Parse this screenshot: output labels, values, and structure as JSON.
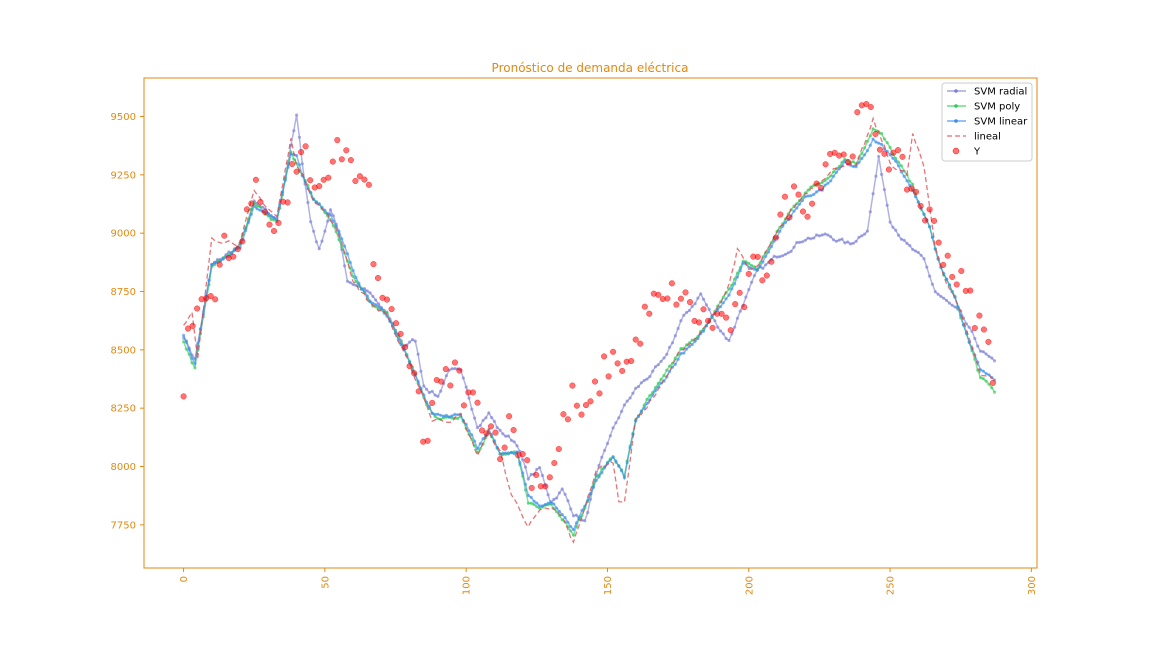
{
  "chart_data": {
    "type": "line",
    "title": "Pronóstico de demanda eléctrica",
    "xlabel": "",
    "ylabel": "",
    "xlim": [
      -14,
      302
    ],
    "ylim": [
      7565,
      9665
    ],
    "x_ticks": [
      0,
      50,
      100,
      150,
      200,
      250,
      300
    ],
    "y_ticks": [
      7750,
      8000,
      8250,
      8500,
      8750,
      9000,
      9250,
      9500
    ],
    "x_tick_labels": [
      "0",
      "50",
      "100",
      "150",
      "200",
      "250",
      "300"
    ],
    "y_tick_labels": [
      "7750",
      "8000",
      "8250",
      "8500",
      "8750",
      "9000",
      "9250",
      "9500"
    ],
    "grid": false,
    "legend_position": "top-right",
    "colors": {
      "svm_radial": "#7b7fd6",
      "svm_poly": "#2ecc57",
      "svm_linear": "#3a8ef0",
      "lineal": "#e0464a",
      "y": "#ff0000",
      "axis": "#e08a12"
    },
    "series": [
      {
        "name": "SVM radial",
        "style": "line-dots",
        "anchors": [
          [
            0,
            8560
          ],
          [
            4,
            8460
          ],
          [
            10,
            8860
          ],
          [
            20,
            8950
          ],
          [
            25,
            9130
          ],
          [
            33,
            9050
          ],
          [
            40,
            9500
          ],
          [
            42,
            9300
          ],
          [
            45,
            9050
          ],
          [
            48,
            8930
          ],
          [
            52,
            9100
          ],
          [
            55,
            9000
          ],
          [
            58,
            8800
          ],
          [
            65,
            8750
          ],
          [
            72,
            8650
          ],
          [
            78,
            8520
          ],
          [
            82,
            8540
          ],
          [
            85,
            8350
          ],
          [
            90,
            8300
          ],
          [
            94,
            8420
          ],
          [
            98,
            8400
          ],
          [
            104,
            8180
          ],
          [
            108,
            8230
          ],
          [
            112,
            8150
          ],
          [
            118,
            8100
          ],
          [
            122,
            7950
          ],
          [
            126,
            7990
          ],
          [
            130,
            7850
          ],
          [
            134,
            7900
          ],
          [
            138,
            7800
          ],
          [
            142,
            7760
          ],
          [
            146,
            7950
          ],
          [
            150,
            8100
          ],
          [
            155,
            8240
          ],
          [
            160,
            8330
          ],
          [
            164,
            8380
          ],
          [
            170,
            8450
          ],
          [
            176,
            8620
          ],
          [
            183,
            8740
          ],
          [
            188,
            8620
          ],
          [
            193,
            8540
          ],
          [
            198,
            8700
          ],
          [
            203,
            8830
          ],
          [
            210,
            8900
          ],
          [
            220,
            8980
          ],
          [
            228,
            8990
          ],
          [
            236,
            8950
          ],
          [
            242,
            9020
          ],
          [
            246,
            9320
          ],
          [
            250,
            9060
          ],
          [
            256,
            8950
          ],
          [
            262,
            8880
          ],
          [
            266,
            8750
          ],
          [
            275,
            8650
          ],
          [
            282,
            8500
          ],
          [
            287,
            8440
          ]
        ],
        "noise": 12
      },
      {
        "name": "SVM poly",
        "style": "line-dots",
        "anchors": [
          [
            0,
            8540
          ],
          [
            4,
            8420
          ],
          [
            10,
            8850
          ],
          [
            20,
            8950
          ],
          [
            25,
            9130
          ],
          [
            33,
            9050
          ],
          [
            38,
            9350
          ],
          [
            40,
            9300
          ],
          [
            42,
            9250
          ],
          [
            46,
            9150
          ],
          [
            52,
            9050
          ],
          [
            56,
            8950
          ],
          [
            60,
            8820
          ],
          [
            66,
            8700
          ],
          [
            72,
            8650
          ],
          [
            78,
            8500
          ],
          [
            85,
            8300
          ],
          [
            88,
            8220
          ],
          [
            94,
            8200
          ],
          [
            98,
            8220
          ],
          [
            104,
            8070
          ],
          [
            108,
            8150
          ],
          [
            112,
            8050
          ],
          [
            118,
            8050
          ],
          [
            122,
            7850
          ],
          [
            126,
            7820
          ],
          [
            130,
            7850
          ],
          [
            134,
            7780
          ],
          [
            138,
            7720
          ],
          [
            142,
            7820
          ],
          [
            146,
            7950
          ],
          [
            152,
            8050
          ],
          [
            156,
            7960
          ],
          [
            160,
            8200
          ],
          [
            164,
            8280
          ],
          [
            170,
            8380
          ],
          [
            176,
            8500
          ],
          [
            182,
            8550
          ],
          [
            188,
            8670
          ],
          [
            193,
            8750
          ],
          [
            198,
            8880
          ],
          [
            203,
            8850
          ],
          [
            208,
            8960
          ],
          [
            214,
            9080
          ],
          [
            220,
            9180
          ],
          [
            226,
            9220
          ],
          [
            234,
            9320
          ],
          [
            238,
            9300
          ],
          [
            244,
            9450
          ],
          [
            247,
            9420
          ],
          [
            252,
            9320
          ],
          [
            258,
            9200
          ],
          [
            264,
            9020
          ],
          [
            268,
            8850
          ],
          [
            273,
            8720
          ],
          [
            278,
            8530
          ],
          [
            282,
            8380
          ],
          [
            287,
            8320
          ]
        ],
        "noise": 10
      },
      {
        "name": "SVM linear",
        "style": "line-dots",
        "anchors": [
          [
            0,
            8560
          ],
          [
            4,
            8440
          ],
          [
            10,
            8860
          ],
          [
            20,
            8940
          ],
          [
            25,
            9120
          ],
          [
            33,
            9060
          ],
          [
            38,
            9330
          ],
          [
            40,
            9330
          ],
          [
            42,
            9250
          ],
          [
            46,
            9150
          ],
          [
            52,
            9080
          ],
          [
            56,
            8980
          ],
          [
            60,
            8830
          ],
          [
            66,
            8710
          ],
          [
            72,
            8650
          ],
          [
            78,
            8500
          ],
          [
            85,
            8300
          ],
          [
            88,
            8230
          ],
          [
            94,
            8210
          ],
          [
            98,
            8230
          ],
          [
            104,
            8080
          ],
          [
            108,
            8160
          ],
          [
            112,
            8060
          ],
          [
            118,
            8060
          ],
          [
            122,
            7870
          ],
          [
            126,
            7830
          ],
          [
            130,
            7860
          ],
          [
            134,
            7800
          ],
          [
            138,
            7730
          ],
          [
            142,
            7830
          ],
          [
            146,
            7940
          ],
          [
            152,
            8040
          ],
          [
            156,
            7950
          ],
          [
            160,
            8190
          ],
          [
            164,
            8270
          ],
          [
            170,
            8370
          ],
          [
            176,
            8480
          ],
          [
            182,
            8540
          ],
          [
            188,
            8660
          ],
          [
            193,
            8740
          ],
          [
            198,
            8870
          ],
          [
            203,
            8840
          ],
          [
            208,
            8950
          ],
          [
            214,
            9060
          ],
          [
            220,
            9160
          ],
          [
            226,
            9190
          ],
          [
            234,
            9300
          ],
          [
            238,
            9290
          ],
          [
            244,
            9400
          ],
          [
            247,
            9380
          ],
          [
            252,
            9300
          ],
          [
            258,
            9190
          ],
          [
            264,
            9020
          ],
          [
            268,
            8850
          ],
          [
            273,
            8720
          ],
          [
            278,
            8540
          ],
          [
            282,
            8420
          ],
          [
            287,
            8380
          ]
        ],
        "noise": 8
      },
      {
        "name": "lineal",
        "style": "dashed",
        "anchors": [
          [
            0,
            8600
          ],
          [
            3,
            8650
          ],
          [
            5,
            8450
          ],
          [
            10,
            8980
          ],
          [
            20,
            8960
          ],
          [
            25,
            9170
          ],
          [
            33,
            9070
          ],
          [
            38,
            9400
          ],
          [
            40,
            9300
          ],
          [
            42,
            9250
          ],
          [
            46,
            9150
          ],
          [
            52,
            9060
          ],
          [
            56,
            8960
          ],
          [
            60,
            8800
          ],
          [
            66,
            8700
          ],
          [
            72,
            8650
          ],
          [
            78,
            8480
          ],
          [
            85,
            8300
          ],
          [
            88,
            8200
          ],
          [
            94,
            8200
          ],
          [
            98,
            8220
          ],
          [
            104,
            8050
          ],
          [
            108,
            8150
          ],
          [
            112,
            8060
          ],
          [
            116,
            7880
          ],
          [
            122,
            7750
          ],
          [
            126,
            7800
          ],
          [
            130,
            7820
          ],
          [
            134,
            7780
          ],
          [
            138,
            7670
          ],
          [
            142,
            7830
          ],
          [
            146,
            7980
          ],
          [
            152,
            8020
          ],
          [
            154,
            7850
          ],
          [
            156,
            7860
          ],
          [
            160,
            8200
          ],
          [
            164,
            8260
          ],
          [
            170,
            8370
          ],
          [
            176,
            8500
          ],
          [
            182,
            8550
          ],
          [
            188,
            8660
          ],
          [
            193,
            8780
          ],
          [
            196,
            8930
          ],
          [
            200,
            8840
          ],
          [
            203,
            8850
          ],
          [
            208,
            8950
          ],
          [
            214,
            9080
          ],
          [
            220,
            9170
          ],
          [
            226,
            9240
          ],
          [
            234,
            9300
          ],
          [
            238,
            9280
          ],
          [
            244,
            9480
          ],
          [
            247,
            9400
          ],
          [
            250,
            9300
          ],
          [
            256,
            9250
          ],
          [
            258,
            9420
          ],
          [
            262,
            9280
          ],
          [
            266,
            8950
          ],
          [
            270,
            8780
          ],
          [
            274,
            8700
          ],
          [
            278,
            8550
          ],
          [
            282,
            8400
          ],
          [
            287,
            8380
          ]
        ],
        "noise": 12
      }
    ],
    "scatter": {
      "name": "Y",
      "style": "markers",
      "anchors": [
        [
          0,
          8350
        ],
        [
          2,
          8580
        ],
        [
          4,
          8640
        ],
        [
          7,
          8730
        ],
        [
          10,
          8720
        ],
        [
          14,
          8940
        ],
        [
          18,
          8860
        ],
        [
          22,
          9100
        ],
        [
          26,
          9170
        ],
        [
          30,
          9080
        ],
        [
          34,
          9050
        ],
        [
          38,
          9210
        ],
        [
          42,
          9400
        ],
        [
          46,
          9130
        ],
        [
          50,
          9180
        ],
        [
          54,
          9410
        ],
        [
          57,
          9330
        ],
        [
          59,
          9300
        ],
        [
          62,
          9200
        ],
        [
          64,
          9220
        ],
        [
          66,
          9120
        ],
        [
          68,
          8800
        ],
        [
          70,
          8700
        ],
        [
          74,
          8700
        ],
        [
          78,
          8450
        ],
        [
          82,
          8380
        ],
        [
          86,
          8050
        ],
        [
          88,
          8290
        ],
        [
          92,
          8350
        ],
        [
          96,
          8410
        ],
        [
          100,
          8300
        ],
        [
          104,
          8250
        ],
        [
          108,
          8180
        ],
        [
          112,
          8100
        ],
        [
          116,
          8180
        ],
        [
          120,
          8040
        ],
        [
          124,
          7960
        ],
        [
          128,
          7940
        ],
        [
          132,
          8020
        ],
        [
          135,
          8220
        ],
        [
          138,
          8300
        ],
        [
          142,
          8190
        ],
        [
          146,
          8330
        ],
        [
          150,
          8440
        ],
        [
          154,
          8460
        ],
        [
          158,
          8430
        ],
        [
          162,
          8600
        ],
        [
          166,
          8700
        ],
        [
          170,
          8690
        ],
        [
          174,
          8750
        ],
        [
          178,
          8690
        ],
        [
          182,
          8640
        ],
        [
          186,
          8620
        ],
        [
          190,
          8640
        ],
        [
          194,
          8610
        ],
        [
          198,
          8710
        ],
        [
          202,
          8850
        ],
        [
          206,
          8840
        ],
        [
          210,
          9020
        ],
        [
          214,
          9130
        ],
        [
          218,
          9170
        ],
        [
          222,
          9120
        ],
        [
          226,
          9280
        ],
        [
          230,
          9380
        ],
        [
          234,
          9300
        ],
        [
          238,
          9440
        ],
        [
          241,
          9540
        ],
        [
          244,
          9460
        ],
        [
          248,
          9360
        ],
        [
          252,
          9300
        ],
        [
          256,
          9230
        ],
        [
          260,
          9150
        ],
        [
          264,
          9060
        ],
        [
          268,
          8950
        ],
        [
          272,
          8850
        ],
        [
          276,
          8760
        ],
        [
          280,
          8660
        ],
        [
          284,
          8540
        ],
        [
          287,
          8400
        ]
      ],
      "noise": 70
    }
  }
}
